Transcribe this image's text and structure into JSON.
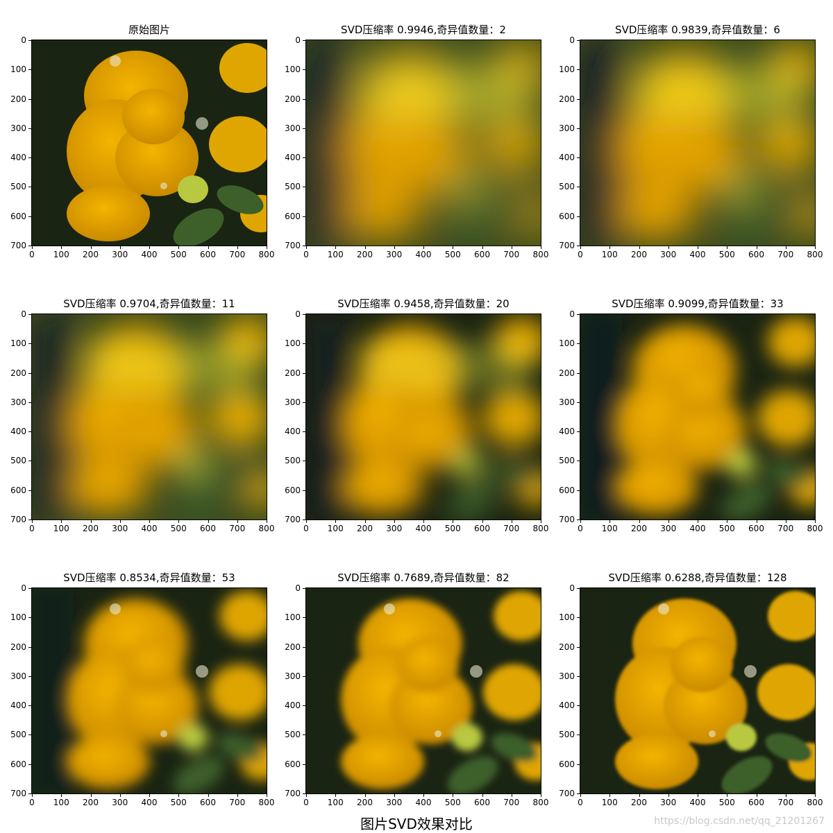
{
  "figure": {
    "title": "图片SVD效果对比"
  },
  "watermark": "https://blog.csdn.net/qq_21201267",
  "axes": {
    "x_ticks": [
      "0",
      "100",
      "200",
      "300",
      "400",
      "500",
      "600",
      "700",
      "800"
    ],
    "y_ticks": [
      "0",
      "100",
      "200",
      "300",
      "400",
      "500",
      "600",
      "700"
    ],
    "xlim": [
      0,
      800
    ],
    "ylim": [
      0,
      700
    ]
  },
  "panels": [
    {
      "title": "原始图片",
      "blur": 0
    },
    {
      "title": "SVD压缩率 0.9946,奇异值数量：2",
      "blur": 1.0
    },
    {
      "title": "SVD压缩率 0.9839,奇异值数量：6",
      "blur": 0.9
    },
    {
      "title": "SVD压缩率 0.9704,奇异值数量：11",
      "blur": 0.75
    },
    {
      "title": "SVD压缩率 0.9458,奇异值数量：20",
      "blur": 0.6
    },
    {
      "title": "SVD压缩率 0.9099,奇异值数量：33",
      "blur": 0.45
    },
    {
      "title": "SVD压缩率 0.8534,奇异值数量：53",
      "blur": 0.32
    },
    {
      "title": "SVD压缩率 0.7689,奇异值数量：82",
      "blur": 0.18
    },
    {
      "title": "SVD压缩率 0.6288,奇异值数量：128",
      "blur": 0.08
    }
  ],
  "colors": {
    "flower": "#f4b400",
    "flower_dark": "#c98a00",
    "leaf": "#3d5f2a",
    "background": "#1a2412",
    "low_rank_bg": "#0d1a2a",
    "highlight": "#f2f23a"
  }
}
